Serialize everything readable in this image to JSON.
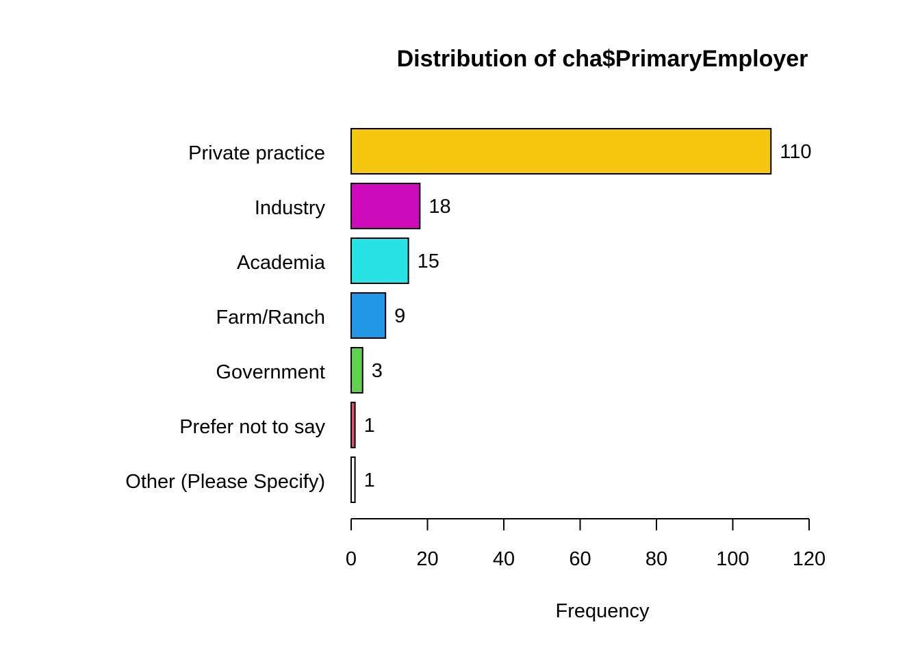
{
  "chart_data": {
    "type": "bar",
    "orientation": "horizontal",
    "title": "Distribution of cha$PrimaryEmployer",
    "xlabel": "Frequency",
    "ylabel": "",
    "categories": [
      "Private practice",
      "Industry",
      "Academia",
      "Farm/Ranch",
      "Government",
      "Prefer not to say",
      "Other (Please Specify)"
    ],
    "values": [
      110,
      18,
      15,
      9,
      3,
      1,
      1
    ],
    "value_labels": [
      "110",
      "18",
      "15",
      "9",
      "3",
      "1",
      "1"
    ],
    "colors": [
      "#F5C710",
      "#CD0BBC",
      "#28E2E5",
      "#2297E6",
      "#61D04F",
      "#DF536B",
      "#FFFFFF"
    ],
    "xlim": [
      0,
      120
    ],
    "x_ticks": [
      0,
      20,
      40,
      60,
      80,
      100,
      120
    ],
    "x_tick_labels": [
      "0",
      "20",
      "40",
      "60",
      "80",
      "100",
      "120"
    ],
    "grid": false,
    "legend": "none"
  }
}
